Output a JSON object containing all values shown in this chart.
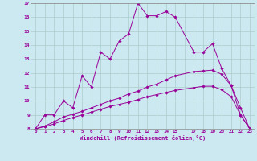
{
  "xlabel": "Windchill (Refroidissement éolien,°C)",
  "bg_color": "#cce8f0",
  "line_color": "#990099",
  "grid_color": "#aacccc",
  "xlim": [
    -0.5,
    23.5
  ],
  "ylim": [
    8,
    17
  ],
  "xticks": [
    0,
    1,
    2,
    3,
    4,
    5,
    6,
    7,
    8,
    9,
    10,
    11,
    12,
    13,
    14,
    15,
    17,
    18,
    19,
    20,
    21,
    22,
    23
  ],
  "yticks": [
    8,
    9,
    10,
    11,
    12,
    13,
    14,
    15,
    16,
    17
  ],
  "lines": [
    {
      "x": [
        0,
        1,
        2,
        3,
        4,
        5,
        6,
        7,
        8,
        9,
        10,
        11,
        12,
        13,
        14,
        15,
        17,
        18,
        19,
        20,
        21,
        22,
        23
      ],
      "y": [
        8,
        9,
        9,
        10,
        9.5,
        11.8,
        11.0,
        13.5,
        13.0,
        14.3,
        14.8,
        17.0,
        16.1,
        16.1,
        16.4,
        16.0,
        13.5,
        13.5,
        14.1,
        12.3,
        11.1,
        9.0,
        8.0
      ]
    },
    {
      "x": [
        0,
        23
      ],
      "y": [
        8,
        8
      ]
    },
    {
      "x": [
        0,
        1,
        2,
        3,
        4,
        5,
        6,
        7,
        8,
        9,
        10,
        11,
        12,
        13,
        14,
        15,
        17,
        18,
        19,
        20,
        21,
        22,
        23
      ],
      "y": [
        8.0,
        8.2,
        8.5,
        8.85,
        9.05,
        9.25,
        9.5,
        9.75,
        10.0,
        10.2,
        10.5,
        10.7,
        11.0,
        11.2,
        11.5,
        11.8,
        12.1,
        12.15,
        12.2,
        11.9,
        11.1,
        9.5,
        8.0
      ]
    },
    {
      "x": [
        0,
        1,
        2,
        3,
        4,
        5,
        6,
        7,
        8,
        9,
        10,
        11,
        12,
        13,
        14,
        15,
        17,
        18,
        19,
        20,
        21,
        22,
        23
      ],
      "y": [
        8.0,
        8.15,
        8.35,
        8.6,
        8.8,
        9.0,
        9.2,
        9.4,
        9.6,
        9.75,
        9.9,
        10.1,
        10.3,
        10.45,
        10.6,
        10.75,
        10.95,
        11.05,
        11.05,
        10.8,
        10.3,
        9.0,
        8.0
      ]
    }
  ],
  "marker_lines": [
    {
      "x": [
        0,
        1,
        2,
        3,
        4,
        5,
        6,
        7,
        8,
        9,
        10,
        11,
        12,
        13,
        14,
        15,
        17,
        18,
        19,
        20,
        21,
        22,
        23
      ],
      "y": [
        8,
        9,
        9,
        10,
        9.5,
        11.8,
        11.0,
        13.5,
        13.0,
        14.3,
        14.8,
        17.0,
        16.1,
        16.1,
        16.4,
        16.0,
        13.5,
        13.5,
        14.1,
        12.3,
        11.1,
        9.0,
        8.0
      ]
    },
    {
      "x": [
        0,
        23
      ],
      "y": [
        8,
        8
      ]
    },
    {
      "x": [
        0,
        1,
        2,
        3,
        4,
        5,
        6,
        7,
        8,
        9,
        10,
        11,
        12,
        13,
        14,
        15,
        17,
        18,
        19,
        20,
        21,
        22,
        23
      ],
      "y": [
        8.0,
        8.2,
        8.5,
        8.85,
        9.05,
        9.25,
        9.5,
        9.75,
        10.0,
        10.2,
        10.5,
        10.7,
        11.0,
        11.2,
        11.5,
        11.8,
        12.1,
        12.15,
        12.2,
        11.9,
        11.1,
        9.5,
        8.0
      ]
    },
    {
      "x": [
        0,
        1,
        2,
        3,
        4,
        5,
        6,
        7,
        8,
        9,
        10,
        11,
        12,
        13,
        14,
        15,
        17,
        18,
        19,
        20,
        21,
        22,
        23
      ],
      "y": [
        8.0,
        8.15,
        8.35,
        8.6,
        8.8,
        9.0,
        9.2,
        9.4,
        9.6,
        9.75,
        9.9,
        10.1,
        10.3,
        10.45,
        10.6,
        10.75,
        10.95,
        11.05,
        11.05,
        10.8,
        10.3,
        9.0,
        8.0
      ]
    }
  ]
}
